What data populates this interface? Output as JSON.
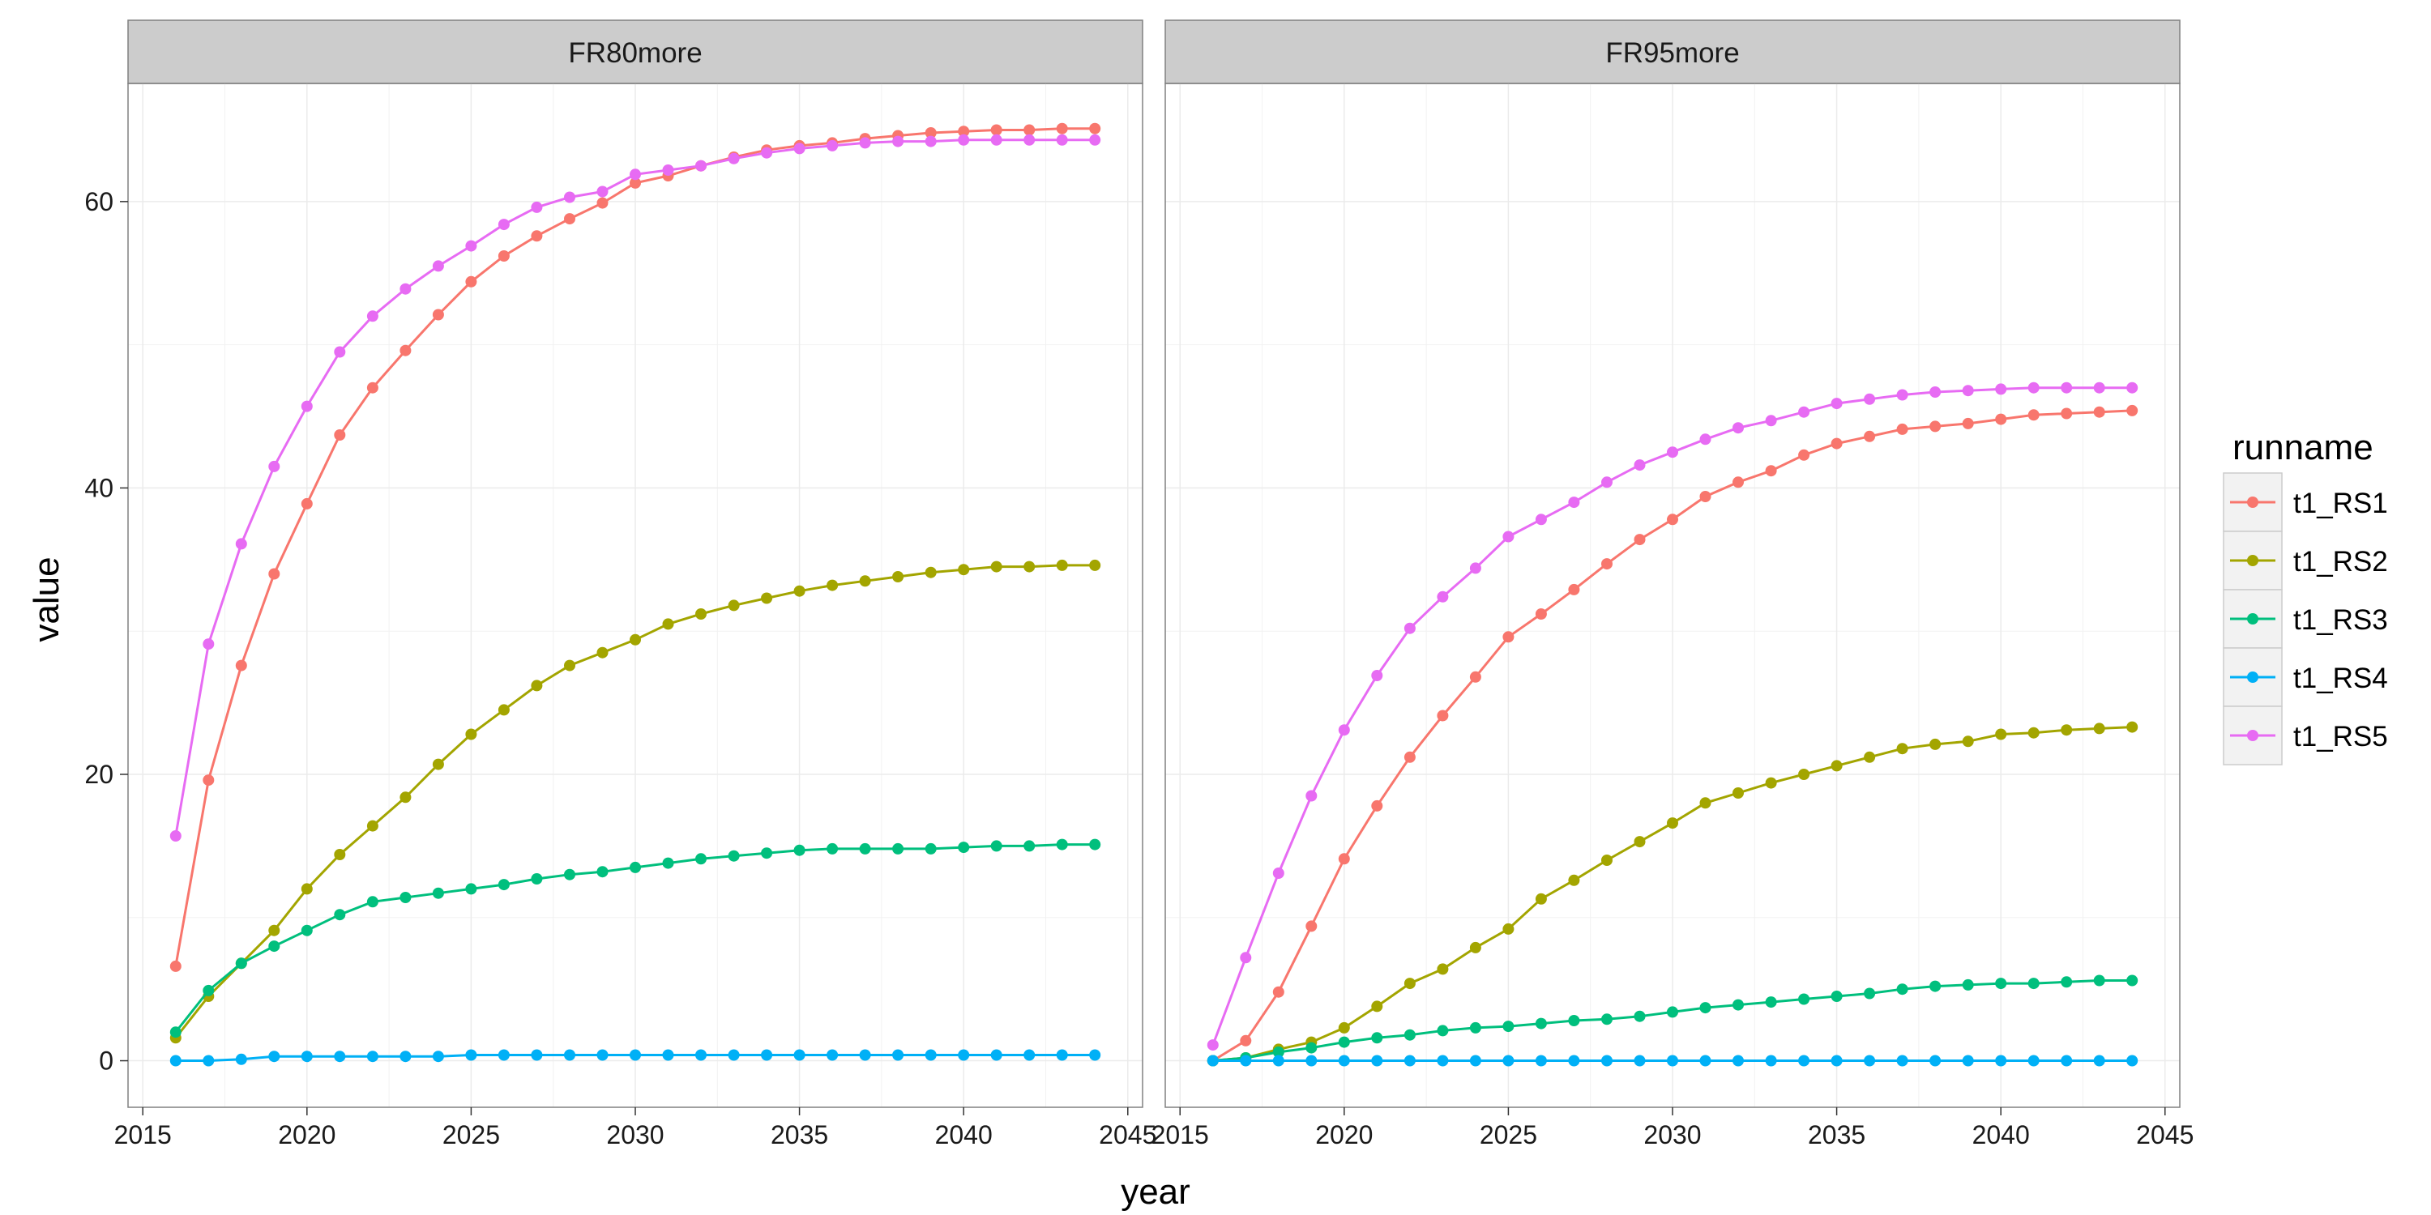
{
  "chart_data": {
    "type": "line",
    "xlabel": "year",
    "ylabel": "value",
    "xlim": [
      2015,
      2045
    ],
    "ylim": [
      0,
      65
    ],
    "x_ticks": [
      2015,
      2020,
      2025,
      2030,
      2035,
      2040,
      2045
    ],
    "y_ticks": [
      0,
      20,
      40,
      60
    ],
    "x_tick_labels": [
      "2015",
      "2020",
      "2025",
      "2030",
      "2035",
      "2040",
      "2045"
    ],
    "y_tick_labels": [
      "0",
      "20",
      "40",
      "60"
    ],
    "grid": true,
    "legend": {
      "title": "runname",
      "position": "right"
    },
    "series_colors": {
      "t1_RS1": "#F8766D",
      "t1_RS2": "#A3A500",
      "t1_RS3": "#00BF7D",
      "t1_RS4": "#00B0F6",
      "t1_RS5": "#E76BF3"
    },
    "series_names": [
      "t1_RS1",
      "t1_RS2",
      "t1_RS3",
      "t1_RS4",
      "t1_RS5"
    ],
    "x": [
      2016,
      2017,
      2018,
      2019,
      2020,
      2021,
      2022,
      2023,
      2024,
      2025,
      2026,
      2027,
      2028,
      2029,
      2030,
      2031,
      2032,
      2033,
      2034,
      2035,
      2036,
      2037,
      2038,
      2039,
      2040,
      2041,
      2042,
      2043,
      2044
    ],
    "panels": [
      {
        "title": "FR80more",
        "series": [
          {
            "name": "t1_RS1",
            "values": [
              6.6,
              19.6,
              27.6,
              34.0,
              38.9,
              43.7,
              47.0,
              49.6,
              52.1,
              54.4,
              56.2,
              57.6,
              58.8,
              59.9,
              61.3,
              61.8,
              62.5,
              63.1,
              63.6,
              63.9,
              64.1,
              64.4,
              64.6,
              64.8,
              64.9,
              65.0,
              65.0,
              65.1,
              65.1
            ]
          },
          {
            "name": "t1_RS2",
            "values": [
              1.6,
              4.5,
              6.8,
              9.1,
              12.0,
              14.4,
              16.4,
              18.4,
              20.7,
              22.8,
              24.5,
              26.2,
              27.6,
              28.5,
              29.4,
              30.5,
              31.2,
              31.8,
              32.3,
              32.8,
              33.2,
              33.5,
              33.8,
              34.1,
              34.3,
              34.5,
              34.5,
              34.6,
              34.6
            ]
          },
          {
            "name": "t1_RS3",
            "values": [
              2.0,
              4.9,
              6.8,
              8.0,
              9.1,
              10.2,
              11.1,
              11.4,
              11.7,
              12.0,
              12.3,
              12.7,
              13.0,
              13.2,
              13.5,
              13.8,
              14.1,
              14.3,
              14.5,
              14.7,
              14.8,
              14.8,
              14.8,
              14.8,
              14.9,
              15.0,
              15.0,
              15.1,
              15.1
            ]
          },
          {
            "name": "t1_RS4",
            "values": [
              0.0,
              0.0,
              0.1,
              0.3,
              0.3,
              0.3,
              0.3,
              0.3,
              0.3,
              0.4,
              0.4,
              0.4,
              0.4,
              0.4,
              0.4,
              0.4,
              0.4,
              0.4,
              0.4,
              0.4,
              0.4,
              0.4,
              0.4,
              0.4,
              0.4,
              0.4,
              0.4,
              0.4,
              0.4
            ]
          },
          {
            "name": "t1_RS5",
            "values": [
              15.7,
              29.1,
              36.1,
              41.5,
              45.7,
              49.5,
              52.0,
              53.9,
              55.5,
              56.9,
              58.4,
              59.6,
              60.3,
              60.7,
              61.9,
              62.2,
              62.5,
              63.0,
              63.4,
              63.7,
              63.9,
              64.1,
              64.2,
              64.2,
              64.3,
              64.3,
              64.3,
              64.3,
              64.3
            ]
          }
        ]
      },
      {
        "title": "FR95more",
        "series": [
          {
            "name": "t1_RS1",
            "values": [
              0.0,
              1.4,
              4.8,
              9.4,
              14.1,
              17.8,
              21.2,
              24.1,
              26.8,
              29.6,
              31.2,
              32.9,
              34.7,
              36.4,
              37.8,
              39.4,
              40.4,
              41.2,
              42.3,
              43.1,
              43.6,
              44.1,
              44.3,
              44.5,
              44.8,
              45.1,
              45.2,
              45.3,
              45.4
            ]
          },
          {
            "name": "t1_RS2",
            "values": [
              0.0,
              0.2,
              0.8,
              1.3,
              2.3,
              3.8,
              5.4,
              6.4,
              7.9,
              9.2,
              11.3,
              12.6,
              14.0,
              15.3,
              16.6,
              18.0,
              18.7,
              19.4,
              20.0,
              20.6,
              21.2,
              21.8,
              22.1,
              22.3,
              22.8,
              22.9,
              23.1,
              23.2,
              23.3
            ]
          },
          {
            "name": "t1_RS3",
            "values": [
              0.0,
              0.2,
              0.6,
              0.9,
              1.3,
              1.6,
              1.8,
              2.1,
              2.3,
              2.4,
              2.6,
              2.8,
              2.9,
              3.1,
              3.4,
              3.7,
              3.9,
              4.1,
              4.3,
              4.5,
              4.7,
              5.0,
              5.2,
              5.3,
              5.4,
              5.4,
              5.5,
              5.6,
              5.6
            ]
          },
          {
            "name": "t1_RS4",
            "values": [
              0.0,
              0.0,
              0.0,
              0.0,
              0.0,
              0.0,
              0.0,
              0.0,
              0.0,
              0.0,
              0.0,
              0.0,
              0.0,
              0.0,
              0.0,
              0.0,
              0.0,
              0.0,
              0.0,
              0.0,
              0.0,
              0.0,
              0.0,
              0.0,
              0.0,
              0.0,
              0.0,
              0.0,
              0.0
            ]
          },
          {
            "name": "t1_RS5",
            "values": [
              1.1,
              7.2,
              13.1,
              18.5,
              23.1,
              26.9,
              30.2,
              32.4,
              34.4,
              36.6,
              37.8,
              39.0,
              40.4,
              41.6,
              42.5,
              43.4,
              44.2,
              44.7,
              45.3,
              45.9,
              46.2,
              46.5,
              46.7,
              46.8,
              46.9,
              47.0,
              47.0,
              47.0,
              47.0
            ]
          }
        ]
      }
    ]
  }
}
